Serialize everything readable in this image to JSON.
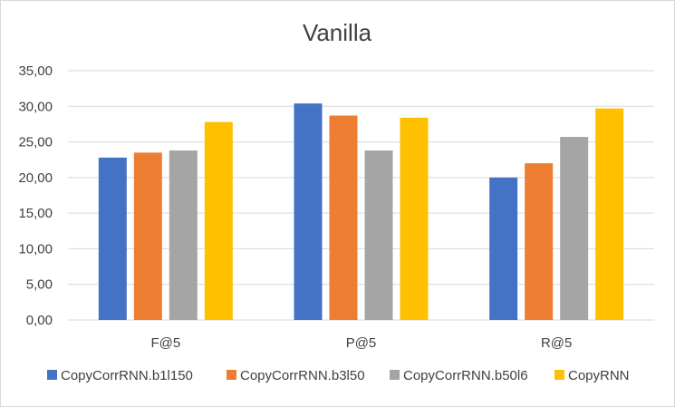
{
  "chart_data": {
    "type": "bar",
    "title": "Vanilla",
    "xlabel": "",
    "ylabel": "",
    "categories": [
      "F@5",
      "P@5",
      "R@5"
    ],
    "y_ticks": [
      "0,00",
      "5,00",
      "10,00",
      "15,00",
      "20,00",
      "25,00",
      "30,00",
      "35,00"
    ],
    "ylim": [
      0,
      35
    ],
    "grid": true,
    "legend_position": "bottom",
    "series": [
      {
        "name": "CopyCorrRNN.b1l150",
        "color": "#4472C4",
        "values": [
          22.8,
          30.4,
          20.0
        ]
      },
      {
        "name": "CopyCorrRNN.b3l50",
        "color": "#ED7D31",
        "values": [
          23.5,
          28.7,
          22.0
        ]
      },
      {
        "name": "CopyCorrRNN.b50l6",
        "color": "#A5A5A5",
        "values": [
          23.8,
          23.8,
          25.7
        ]
      },
      {
        "name": "CopyRNN",
        "color": "#FFC000",
        "values": [
          27.8,
          28.4,
          29.7
        ]
      }
    ]
  }
}
